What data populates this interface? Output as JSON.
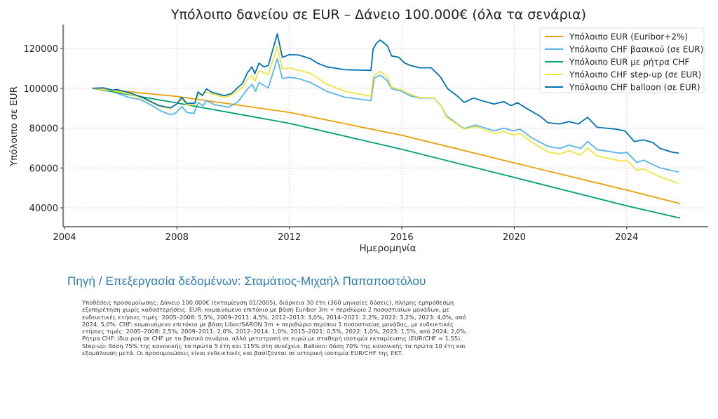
{
  "chart_data": {
    "type": "line",
    "title": "Υπόλοιπο δανείου σε EUR – Δάνειο 100.000€ (όλα τα σενάρια)",
    "xlabel": "Ημερομηνία",
    "ylabel": "Υπόλοιπο σε EUR",
    "xlim": [
      2003.95,
      2026.9
    ],
    "ylim": [
      30500,
      132000
    ],
    "xticks": [
      2004,
      2008,
      2012,
      2016,
      2020,
      2024
    ],
    "yticks": [
      40000,
      60000,
      80000,
      100000,
      120000
    ],
    "grid": true,
    "legend_position": "top-right",
    "series": [
      {
        "name": "Υπόλοιπο EUR (Euribor+2%)",
        "color": "#E69F00",
        "points": [
          [
            2005.0,
            100000
          ],
          [
            2008.0,
            95900
          ],
          [
            2012.0,
            87900
          ],
          [
            2016.0,
            76400
          ],
          [
            2020.0,
            62550
          ],
          [
            2024.0,
            48900
          ],
          [
            2025.9,
            42100
          ]
        ]
      },
      {
        "name": "Υπόλοιπο CHF βασικού (σε EUR)",
        "color": "#56B4E9",
        "points": [
          [
            2005.0,
            100000
          ],
          [
            2005.7,
            98500
          ],
          [
            2006.27,
            95500
          ],
          [
            2006.69,
            94400
          ],
          [
            2007.1,
            91400
          ],
          [
            2007.44,
            88500
          ],
          [
            2007.77,
            86700
          ],
          [
            2007.93,
            87300
          ],
          [
            2008.18,
            90800
          ],
          [
            2008.35,
            87900
          ],
          [
            2008.6,
            87300
          ],
          [
            2008.76,
            92800
          ],
          [
            2008.93,
            91200
          ],
          [
            2009.05,
            93800
          ],
          [
            2009.34,
            91700
          ],
          [
            2009.84,
            90500
          ],
          [
            2010.17,
            93200
          ],
          [
            2010.51,
            99600
          ],
          [
            2010.67,
            102000
          ],
          [
            2010.8,
            98500
          ],
          [
            2010.92,
            102900
          ],
          [
            2011.25,
            100200
          ],
          [
            2011.57,
            114900
          ],
          [
            2011.75,
            104900
          ],
          [
            2012.0,
            105500
          ],
          [
            2012.33,
            104900
          ],
          [
            2012.75,
            102900
          ],
          [
            2013.33,
            98500
          ],
          [
            2013.99,
            95500
          ],
          [
            2014.9,
            93800
          ],
          [
            2015.02,
            105100
          ],
          [
            2015.23,
            106600
          ],
          [
            2015.48,
            103900
          ],
          [
            2015.64,
            99800
          ],
          [
            2015.98,
            98600
          ],
          [
            2016.3,
            96200
          ],
          [
            2016.64,
            95100
          ],
          [
            2017.14,
            95100
          ],
          [
            2017.38,
            91500
          ],
          [
            2017.59,
            86200
          ],
          [
            2017.97,
            82100
          ],
          [
            2018.22,
            79800
          ],
          [
            2018.63,
            81500
          ],
          [
            2019.29,
            78600
          ],
          [
            2019.63,
            80000
          ],
          [
            2019.96,
            78600
          ],
          [
            2020.21,
            79500
          ],
          [
            2020.62,
            75100
          ],
          [
            2021.2,
            70900
          ],
          [
            2021.62,
            69800
          ],
          [
            2021.95,
            71500
          ],
          [
            2022.37,
            69800
          ],
          [
            2022.61,
            73300
          ],
          [
            2022.95,
            69200
          ],
          [
            2023.78,
            67400
          ],
          [
            2024.02,
            67800
          ],
          [
            2024.36,
            62700
          ],
          [
            2024.6,
            63900
          ],
          [
            2025.19,
            60000
          ],
          [
            2025.85,
            58000
          ]
        ]
      },
      {
        "name": "Υπόλοιπο EUR με ρήτρα CHF",
        "color": "#009E73",
        "points": [
          [
            2005.0,
            100000
          ],
          [
            2008.0,
            92600
          ],
          [
            2012.0,
            82400
          ],
          [
            2016.0,
            69350
          ],
          [
            2020.0,
            55250
          ],
          [
            2024.0,
            40950
          ],
          [
            2025.9,
            34800
          ]
        ]
      },
      {
        "name": "Υπόλοιπο CHF step-up (σε EUR)",
        "color": "#F0E442",
        "points": [
          [
            2005.0,
            100000
          ],
          [
            2005.7,
            98800
          ],
          [
            2006.27,
            97200
          ],
          [
            2006.77,
            95000
          ],
          [
            2007.35,
            91000
          ],
          [
            2007.77,
            89800
          ],
          [
            2008.17,
            94500
          ],
          [
            2008.35,
            91600
          ],
          [
            2008.64,
            91800
          ],
          [
            2008.75,
            96500
          ],
          [
            2009.05,
            98000
          ],
          [
            2009.68,
            95500
          ],
          [
            2009.93,
            96500
          ],
          [
            2010.34,
            100500
          ],
          [
            2010.51,
            104500
          ],
          [
            2010.67,
            106500
          ],
          [
            2010.77,
            103500
          ],
          [
            2010.92,
            108800
          ],
          [
            2011.25,
            107000
          ],
          [
            2011.57,
            121000
          ],
          [
            2011.75,
            109800
          ],
          [
            2012.0,
            110300
          ],
          [
            2012.75,
            107500
          ],
          [
            2013.33,
            102000
          ],
          [
            2013.99,
            98500
          ],
          [
            2014.9,
            96000
          ],
          [
            2014.98,
            106000
          ],
          [
            2015.23,
            108500
          ],
          [
            2015.48,
            105800
          ],
          [
            2015.64,
            100600
          ],
          [
            2015.98,
            99200
          ],
          [
            2016.3,
            97000
          ],
          [
            2016.64,
            95300
          ],
          [
            2017.14,
            95200
          ],
          [
            2017.38,
            91500
          ],
          [
            2017.59,
            85500
          ],
          [
            2017.97,
            81800
          ],
          [
            2018.22,
            79500
          ],
          [
            2018.63,
            80800
          ],
          [
            2019.29,
            77300
          ],
          [
            2019.63,
            78300
          ],
          [
            2019.96,
            76500
          ],
          [
            2020.21,
            77300
          ],
          [
            2020.62,
            73000
          ],
          [
            2021.2,
            68000
          ],
          [
            2021.62,
            67000
          ],
          [
            2021.95,
            68600
          ],
          [
            2022.37,
            66500
          ],
          [
            2022.61,
            70000
          ],
          [
            2022.95,
            66000
          ],
          [
            2023.78,
            63500
          ],
          [
            2024.02,
            63800
          ],
          [
            2024.36,
            58800
          ],
          [
            2024.6,
            59500
          ],
          [
            2025.19,
            55500
          ],
          [
            2025.85,
            52300
          ]
        ]
      },
      {
        "name": "Υπόλοιπο CHF balloon (σε EUR)",
        "color": "#0072B2",
        "points": [
          [
            2005.0,
            100000
          ],
          [
            2005.4,
            100200
          ],
          [
            2005.7,
            99060
          ],
          [
            2005.86,
            99400
          ],
          [
            2006.27,
            97900
          ],
          [
            2006.77,
            95500
          ],
          [
            2007.35,
            91400
          ],
          [
            2007.77,
            90200
          ],
          [
            2007.98,
            92000
          ],
          [
            2008.17,
            95500
          ],
          [
            2008.35,
            92350
          ],
          [
            2008.64,
            92600
          ],
          [
            2008.75,
            98200
          ],
          [
            2008.91,
            96350
          ],
          [
            2009.05,
            99650
          ],
          [
            2009.26,
            97900
          ],
          [
            2009.68,
            96350
          ],
          [
            2009.93,
            97300
          ],
          [
            2010.34,
            102600
          ],
          [
            2010.51,
            107900
          ],
          [
            2010.67,
            110800
          ],
          [
            2010.77,
            107300
          ],
          [
            2010.92,
            112600
          ],
          [
            2011.09,
            110800
          ],
          [
            2011.25,
            111400
          ],
          [
            2011.57,
            127300
          ],
          [
            2011.75,
            115500
          ],
          [
            2012.0,
            116900
          ],
          [
            2012.33,
            116700
          ],
          [
            2012.75,
            114900
          ],
          [
            2013.0,
            112600
          ],
          [
            2013.33,
            110800
          ],
          [
            2013.99,
            109300
          ],
          [
            2014.9,
            109000
          ],
          [
            2014.98,
            119800
          ],
          [
            2015.1,
            122700
          ],
          [
            2015.23,
            124200
          ],
          [
            2015.48,
            121500
          ],
          [
            2015.64,
            116200
          ],
          [
            2015.89,
            115600
          ],
          [
            2016.1,
            112700
          ],
          [
            2016.3,
            111500
          ],
          [
            2016.64,
            110300
          ],
          [
            2017.05,
            110300
          ],
          [
            2017.38,
            105600
          ],
          [
            2017.63,
            99800
          ],
          [
            2017.97,
            96200
          ],
          [
            2018.22,
            92900
          ],
          [
            2018.55,
            95100
          ],
          [
            2018.96,
            93300
          ],
          [
            2019.29,
            92100
          ],
          [
            2019.63,
            93300
          ],
          [
            2019.88,
            91300
          ],
          [
            2020.12,
            92700
          ],
          [
            2020.45,
            89800
          ],
          [
            2020.95,
            85700
          ],
          [
            2021.2,
            82700
          ],
          [
            2021.62,
            82100
          ],
          [
            2021.95,
            83300
          ],
          [
            2022.28,
            82100
          ],
          [
            2022.61,
            85400
          ],
          [
            2022.95,
            80400
          ],
          [
            2023.61,
            79500
          ],
          [
            2023.94,
            78600
          ],
          [
            2024.27,
            73300
          ],
          [
            2024.6,
            74100
          ],
          [
            2024.94,
            72700
          ],
          [
            2025.19,
            69800
          ],
          [
            2025.6,
            68000
          ],
          [
            2025.85,
            67400
          ]
        ]
      }
    ]
  },
  "source_heading": "Πηγή / Επεξεργασία δεδομένων: Σταμάτιος-Μιχαήλ Παπαποστόλου",
  "footnote": "Υποθέσεις προσομοίωσης: Δάνειο 100.000€ (εκταμίευση 01/2005), διάρκεια 30 έτη (360 μηνιαίες δόσεις), πλήρης εμπρόθεσμη εξυπηρέτηση χωρίς καθυστερήσεις. EUR: κυμαινόμενο επιτόκιο με βάση Euribor 3m + περιθώριο 2 ποσοστιαίων μονάδων, με ενδεικτικές ετήσιες τιμές: 2005–2008: 5,5%, 2009–2011: 4,5%, 2012–2013: 3,0%, 2014–2021: 2,2%, 2022: 3,2%, 2023: 4,0%, από 2024: 5,0%. CHF: κυμαινόμενο επιτόκιο με βάση Libor/SARON 3m + περιθώριο περίπου 1 ποσοστιαίας μονάδας, με ενδεικτικές ετήσιες τιμές: 2005–2008: 2,5%, 2009–2011: 2,0%, 2012–2014: 1,0%, 2015–2021: 0,5%, 2022: 1,0%, 2023: 1,5%, από 2024: 2,0%. Ρήτρα CHF: ίδια ροή σε CHF με το βασικό σενάριο, αλλά μετατροπή σε ευρώ με σταθερή ισοτιμία εκταμίευσης (EUR/CHF ≈ 1,55). Step-up: δόση 75% της κανονικής τα πρώτα 5 έτη και 115% στη συνέχεια. Balloon: δόση 70% της κανονικής τα πρώτα 10 έτη και εξομάλυνση μετά. Οι προσομοιώσεις είναι ενδεικτικές και βασίζονται σε ιστορική ισοτιμία EUR/CHF της ΕΚΤ."
}
